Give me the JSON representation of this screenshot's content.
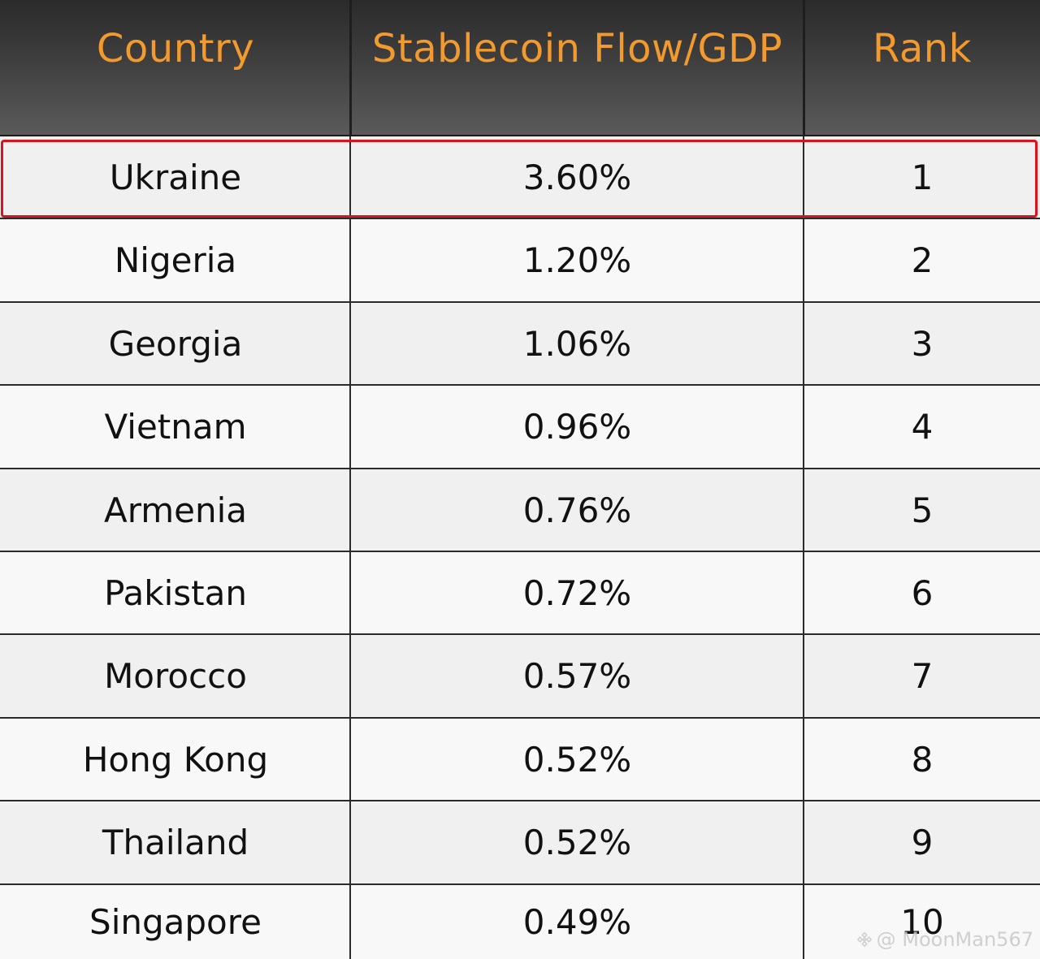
{
  "chart_data": {
    "type": "table",
    "columns": [
      "Country",
      "Stablecoin Flow/GDP",
      "Rank"
    ],
    "rows": [
      {
        "country": "Ukraine",
        "flow": "3.60%",
        "rank": "1",
        "highlighted": true
      },
      {
        "country": "Nigeria",
        "flow": "1.20%",
        "rank": "2"
      },
      {
        "country": "Georgia",
        "flow": "1.06%",
        "rank": "3"
      },
      {
        "country": "Vietnam",
        "flow": "0.96%",
        "rank": "4"
      },
      {
        "country": "Armenia",
        "flow": "0.76%",
        "rank": "5"
      },
      {
        "country": "Pakistan",
        "flow": "0.72%",
        "rank": "6"
      },
      {
        "country": "Morocco",
        "flow": "0.57%",
        "rank": "7"
      },
      {
        "country": "Hong Kong",
        "flow": "0.52%",
        "rank": "8"
      },
      {
        "country": "Thailand",
        "flow": "0.52%",
        "rank": "9"
      },
      {
        "country": "Singapore",
        "flow": "0.49%",
        "rank": "10"
      }
    ]
  },
  "colors": {
    "header_text": "#f29a2e",
    "highlight_border": "#d8151c"
  },
  "watermark": {
    "text": "@ MoonMan567",
    "icon": "binance-logo-icon"
  }
}
